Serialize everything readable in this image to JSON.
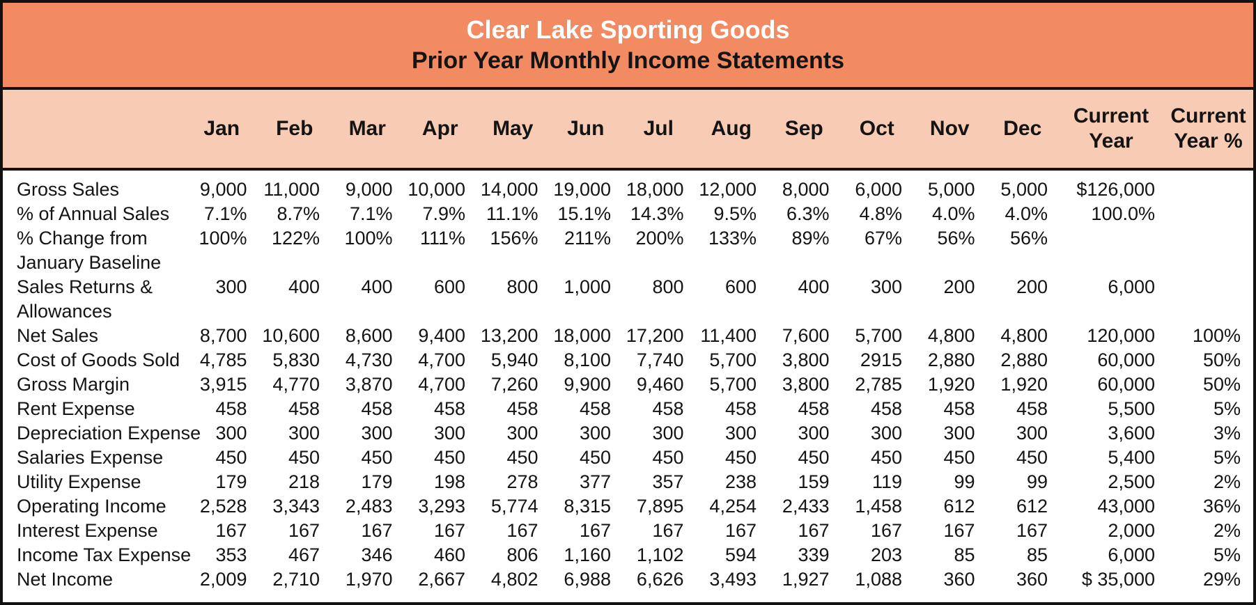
{
  "title": {
    "line1": "Clear Lake Sporting Goods",
    "line2": "Prior Year Monthly Income Statements"
  },
  "columns": [
    "Jan",
    "Feb",
    "Mar",
    "Apr",
    "May",
    "Jun",
    "Jul",
    "Aug",
    "Sep",
    "Oct",
    "Nov",
    "Dec",
    "Current Year",
    "Current Year %"
  ],
  "rows": [
    {
      "label": "Gross Sales",
      "values": [
        "9,000",
        "11,000",
        "9,000",
        "10,000",
        "14,000",
        "19,000",
        "18,000",
        "12,000",
        "8,000",
        "6,000",
        "5,000",
        "5,000",
        "$126,000",
        ""
      ]
    },
    {
      "label": "% of Annual Sales",
      "values": [
        "7.1%",
        "8.7%",
        "7.1%",
        "7.9%",
        "11.1%",
        "15.1%",
        "14.3%",
        "9.5%",
        "6.3%",
        "4.8%",
        "4.0%",
        "4.0%",
        "100.0%",
        ""
      ]
    },
    {
      "label": "% Change from\nJanuary Baseline",
      "values": [
        "100%",
        "122%",
        "100%",
        "111%",
        "156%",
        "211%",
        "200%",
        "133%",
        "89%",
        "67%",
        "56%",
        "56%",
        "",
        ""
      ]
    },
    {
      "label": "Sales Returns &\nAllowances",
      "values": [
        "300",
        "400",
        "400",
        "600",
        "800",
        "1,000",
        "800",
        "600",
        "400",
        "300",
        "200",
        "200",
        "6,000",
        ""
      ]
    },
    {
      "label": "Net Sales",
      "values": [
        "8,700",
        "10,600",
        "8,600",
        "9,400",
        "13,200",
        "18,000",
        "17,200",
        "11,400",
        "7,600",
        "5,700",
        "4,800",
        "4,800",
        "120,000",
        "100%"
      ]
    },
    {
      "label": "Cost of Goods Sold",
      "values": [
        "4,785",
        "5,830",
        "4,730",
        "4,700",
        "5,940",
        "8,100",
        "7,740",
        "5,700",
        "3,800",
        "2915",
        "2,880",
        "2,880",
        "60,000",
        "50%"
      ]
    },
    {
      "label": "Gross Margin",
      "values": [
        "3,915",
        "4,770",
        "3,870",
        "4,700",
        "7,260",
        "9,900",
        "9,460",
        "5,700",
        "3,800",
        "2,785",
        "1,920",
        "1,920",
        "60,000",
        "50%"
      ]
    },
    {
      "label": "Rent Expense",
      "values": [
        "458",
        "458",
        "458",
        "458",
        "458",
        "458",
        "458",
        "458",
        "458",
        "458",
        "458",
        "458",
        "5,500",
        "5%"
      ]
    },
    {
      "label": "Depreciation Expense",
      "values": [
        "300",
        "300",
        "300",
        "300",
        "300",
        "300",
        "300",
        "300",
        "300",
        "300",
        "300",
        "300",
        "3,600",
        "3%"
      ]
    },
    {
      "label": "Salaries Expense",
      "values": [
        "450",
        "450",
        "450",
        "450",
        "450",
        "450",
        "450",
        "450",
        "450",
        "450",
        "450",
        "450",
        "5,400",
        "5%"
      ]
    },
    {
      "label": "Utility Expense",
      "values": [
        "179",
        "218",
        "179",
        "198",
        "278",
        "377",
        "357",
        "238",
        "159",
        "119",
        "99",
        "99",
        "2,500",
        "2%"
      ]
    },
    {
      "label": "Operating Income",
      "values": [
        "2,528",
        "3,343",
        "2,483",
        "3,293",
        "5,774",
        "8,315",
        "7,895",
        "4,254",
        "2,433",
        "1,458",
        "612",
        "612",
        "43,000",
        "36%"
      ]
    },
    {
      "label": "Interest Expense",
      "values": [
        "167",
        "167",
        "167",
        "167",
        "167",
        "167",
        "167",
        "167",
        "167",
        "167",
        "167",
        "167",
        "2,000",
        "2%"
      ]
    },
    {
      "label": "Income Tax Expense",
      "values": [
        "353",
        "467",
        "346",
        "460",
        "806",
        "1,160",
        "1,102",
        "594",
        "339",
        "203",
        "85",
        "85",
        "6,000",
        "5%"
      ]
    },
    {
      "label": "Net Income",
      "values": [
        "2,009",
        "2,710",
        "1,970",
        "2,667",
        "4,802",
        "6,988",
        "6,626",
        "3,493",
        "1,927",
        "1,088",
        "360",
        "360",
        "$ 35,000",
        "29%"
      ]
    }
  ],
  "colors": {
    "header_orange": "#f28a62",
    "header_peach": "#f8ccb4",
    "border_black": "#111111",
    "title_text_white": "#ffffff",
    "text_black": "#141414"
  }
}
